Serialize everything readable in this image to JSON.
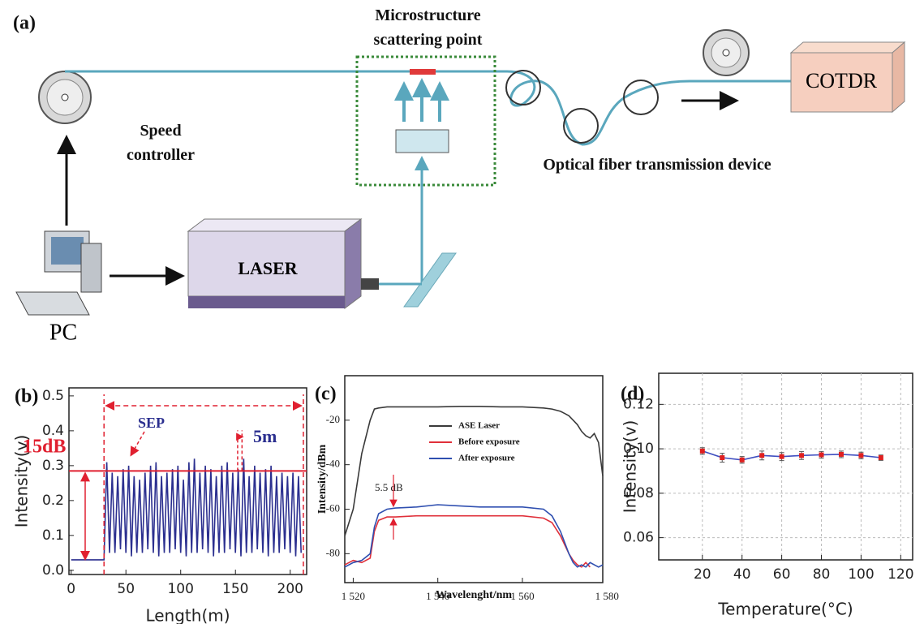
{
  "diagram": {
    "panel_label": "(a)",
    "scatter_label": "Microstructure scattering point",
    "speed_label": "Speed controller",
    "fiber_label": "Optical fiber transmission device",
    "cotdr_label": "COTDR",
    "laser_label": "LASER",
    "pc_label": "PC"
  },
  "chart_data": [
    {
      "type": "line",
      "title": "(b)",
      "xlabel": "Length(m)",
      "ylabel": "Intensity(v)",
      "color": "#2b2f8f",
      "x": [
        0,
        30,
        32.5,
        35,
        37.5,
        40,
        42.5,
        45,
        47.5,
        50,
        52.5,
        55,
        57.5,
        60,
        62.5,
        65,
        67.5,
        70,
        72.5,
        75,
        77.5,
        80,
        82.5,
        85,
        87.5,
        90,
        92.5,
        95,
        97.5,
        100,
        102.5,
        105,
        107.5,
        110,
        112.5,
        115,
        117.5,
        120,
        122.5,
        125,
        127.5,
        130,
        132.5,
        135,
        137.5,
        140,
        142.5,
        145,
        147.5,
        150,
        152.5,
        155,
        157.5,
        160,
        162.5,
        165,
        167.5,
        170,
        172.5,
        175,
        177.5,
        180,
        182.5,
        185,
        187.5,
        190,
        192.5,
        195,
        197.5,
        200,
        202.5,
        205,
        207.5,
        210
      ],
      "values": [
        0.03,
        0.03,
        0.31,
        0.05,
        0.28,
        0.05,
        0.27,
        0.06,
        0.29,
        0.05,
        0.3,
        0.04,
        0.27,
        0.05,
        0.26,
        0.05,
        0.28,
        0.06,
        0.3,
        0.05,
        0.31,
        0.04,
        0.27,
        0.05,
        0.28,
        0.05,
        0.29,
        0.06,
        0.3,
        0.05,
        0.26,
        0.04,
        0.31,
        0.05,
        0.32,
        0.05,
        0.28,
        0.06,
        0.3,
        0.05,
        0.29,
        0.04,
        0.27,
        0.05,
        0.3,
        0.05,
        0.31,
        0.06,
        0.28,
        0.05,
        0.29,
        0.04,
        0.32,
        0.05,
        0.27,
        0.05,
        0.3,
        0.06,
        0.28,
        0.05,
        0.29,
        0.04,
        0.3,
        0.05,
        0.27,
        0.05,
        0.28,
        0.06,
        0.27,
        0.05,
        0.28,
        0.04,
        0.27,
        0.05
      ],
      "threshold": 0.285,
      "span": [
        30,
        212
      ],
      "spacing": [
        152,
        156
      ],
      "annotations": [
        "15dB",
        "SEP",
        "5m"
      ],
      "xlim": [
        -2,
        215
      ],
      "xticks": [
        0,
        50,
        100,
        150,
        200
      ],
      "ylim": [
        -0.012,
        0.523
      ],
      "yticks": [
        {
          "value": 0,
          "label": "0.0"
        },
        0.1,
        0.2,
        0.3,
        0.4,
        0.5
      ],
      "grid": false
    },
    {
      "type": "line",
      "title": "(c)",
      "xlabel": "Wavelenght/nm",
      "ylabel": "Intensity/dBm",
      "x": [
        1518,
        1520,
        1522,
        1524,
        1525,
        1526,
        1528,
        1530,
        1535,
        1540,
        1545,
        1550,
        1555,
        1560,
        1565,
        1567,
        1569,
        1570,
        1571,
        1572,
        1573,
        1574,
        1575,
        1576,
        1577,
        1578,
        1579
      ],
      "series": [
        {
          "name": "ASE Laser",
          "color": "#3a3a3a",
          "values": [
            -72,
            -60,
            -35,
            -20,
            -15,
            -14.5,
            -14,
            -14,
            -14,
            -14,
            -13.8,
            -13.8,
            -14,
            -14,
            -14.5,
            -15,
            -16,
            -17,
            -18,
            -20,
            -22,
            -25,
            -27,
            -28,
            -26,
            -30,
            -45
          ]
        },
        {
          "name": "Before exposure",
          "color": "#e0303a",
          "values": [
            -85,
            -83,
            -84,
            -82,
            -70,
            -65,
            -63.5,
            -63.5,
            -63,
            -63,
            -63,
            -63,
            -63,
            -63,
            -64,
            -66,
            -72,
            -76,
            -80,
            -83,
            -85,
            -86,
            -84,
            -86,
            null,
            null,
            null
          ]
        },
        {
          "name": "After exposure",
          "color": "#2f4fb0",
          "values": [
            -86,
            -84,
            -83,
            -80,
            -68,
            -62,
            -60,
            -59.5,
            -59,
            -58,
            -58.5,
            -59,
            -59,
            -59,
            -60,
            -63,
            -70,
            -75,
            -80,
            -84,
            -86,
            -85,
            -86,
            -84,
            -85,
            -86,
            -85
          ]
        }
      ],
      "annotations": [
        "5.5 dB"
      ],
      "legend": "upper center",
      "xlim": [
        1518,
        1579
      ],
      "xticks": [
        {
          "value": 1520,
          "label": "1 520"
        },
        {
          "value": 1540,
          "label": "1 540"
        },
        {
          "value": 1560,
          "label": "1 560"
        },
        {
          "value": 1580,
          "label": "1 580"
        }
      ],
      "ylim": [
        -93,
        0
      ],
      "yticks": [
        -20,
        -40,
        -60,
        -80
      ],
      "grid": false
    },
    {
      "type": "line",
      "title": "(d)",
      "xlabel": "Temperature(°C)",
      "ylabel": "Intensity(v)",
      "color": "#3f4fc0",
      "marker_color": "#e02020",
      "x": [
        20,
        30,
        40,
        50,
        60,
        70,
        80,
        90,
        100,
        110
      ],
      "values": [
        0.099,
        0.096,
        0.095,
        0.097,
        0.0965,
        0.097,
        0.0973,
        0.0975,
        0.097,
        0.096
      ],
      "errors": [
        0.0015,
        0.002,
        0.0015,
        0.002,
        0.0018,
        0.0018,
        0.0015,
        0.0015,
        0.0015,
        0.0012
      ],
      "xlim": [
        -2,
        126
      ],
      "xticks": [
        20,
        40,
        60,
        80,
        100,
        120
      ],
      "ylim": [
        0.05,
        0.134
      ],
      "yticks": [
        0.06,
        0.08,
        {
          "value": 0.1,
          "label": "0.10"
        },
        0.12
      ],
      "grid": true
    }
  ]
}
